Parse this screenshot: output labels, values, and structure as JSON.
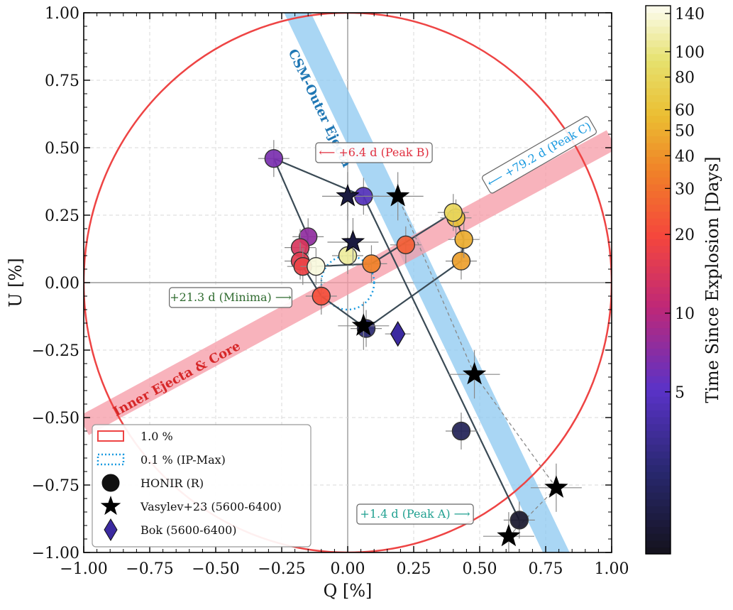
{
  "chart_data": {
    "type": "scatter",
    "xlabel": "Q [%]",
    "ylabel": "U [%]",
    "xlim": [
      -1.0,
      1.0
    ],
    "ylim": [
      -1.0,
      1.0
    ],
    "grid": true,
    "x_ticks": [
      "−1.00",
      "−0.75",
      "−0.50",
      "−0.25",
      "0.00",
      "0.25",
      "0.50",
      "0.75",
      "1.00"
    ],
    "y_ticks": [
      "1.00",
      "0.75",
      "0.50",
      "0.25",
      "0.00",
      "−0.25",
      "−0.50",
      "−0.75",
      "−1.00"
    ],
    "x_tick_values": [
      -1.0,
      -0.75,
      -0.5,
      -0.25,
      0.0,
      0.25,
      0.5,
      0.75,
      1.0
    ],
    "y_tick_values": [
      1.0,
      0.75,
      0.5,
      0.25,
      0.0,
      -0.25,
      -0.5,
      -0.75,
      -1.0
    ],
    "circles": [
      {
        "name": "1.0 %",
        "radius": 1.0,
        "color": "#ee4444",
        "style": "solid"
      },
      {
        "name": "0.1 % (IP-Max)",
        "radius": 0.1,
        "color": "#1a9ae0",
        "style": "dotted"
      }
    ],
    "bands": [
      {
        "label": "CSM-Outer Ejecta",
        "color": "#8cc8f0",
        "text_color": "#1f77b4",
        "line": [
          [
            -0.2,
            1.02
          ],
          [
            0.8,
            -1.02
          ]
        ]
      },
      {
        "label": "Inner Ejecta & Core",
        "color": "#f59aa6",
        "text_color": "#d62728",
        "line": [
          [
            -1.0,
            -0.53
          ],
          [
            1.0,
            0.53
          ]
        ]
      }
    ],
    "honir_series": [
      {
        "q": 0.65,
        "u": -0.88,
        "day": 1.4
      },
      {
        "q": 0.43,
        "u": -0.55,
        "day": 2.0
      },
      {
        "q": 0.06,
        "u": 0.32,
        "day": 4.5
      },
      {
        "q": -0.28,
        "u": 0.46,
        "day": 6.4
      },
      {
        "q": -0.15,
        "u": 0.17,
        "day": 7.5
      },
      {
        "q": 0.07,
        "u": -0.17,
        "day": 2.5
      },
      {
        "q": -0.18,
        "u": 0.13,
        "day": 14
      },
      {
        "q": -0.18,
        "u": 0.08,
        "day": 16
      },
      {
        "q": -0.17,
        "u": 0.06,
        "day": 18
      },
      {
        "q": -0.1,
        "u": -0.05,
        "day": 21.3
      },
      {
        "q": 0.22,
        "u": 0.14,
        "day": 25
      },
      {
        "q": 0.09,
        "u": 0.07,
        "day": 35
      },
      {
        "q": 0.43,
        "u": 0.08,
        "day": 45
      },
      {
        "q": 0.44,
        "u": 0.16,
        "day": 50
      },
      {
        "q": 0.41,
        "u": 0.24,
        "day": 60
      },
      {
        "q": 0.4,
        "u": 0.26,
        "day": 79.2
      },
      {
        "q": 0.0,
        "u": 0.1,
        "day": 110
      },
      {
        "q": -0.12,
        "u": 0.06,
        "day": 140
      }
    ],
    "honir_path": [
      [
        0.65,
        -0.88
      ],
      [
        0.06,
        0.32
      ],
      [
        -0.28,
        0.46
      ],
      [
        -0.15,
        0.17
      ],
      [
        -0.17,
        0.06
      ],
      [
        -0.1,
        -0.05
      ],
      [
        0.07,
        -0.17
      ],
      [
        0.43,
        0.08
      ],
      [
        0.44,
        0.16
      ],
      [
        0.4,
        0.26
      ],
      [
        0.09,
        0.07
      ],
      [
        -0.12,
        0.06
      ]
    ],
    "vasylev23": [
      {
        "q": 0.61,
        "u": -0.94
      },
      {
        "q": 0.79,
        "u": -0.76
      },
      {
        "q": 0.48,
        "u": -0.34
      },
      {
        "q": 0.19,
        "u": 0.32
      },
      {
        "q": 0.0,
        "u": 0.32
      },
      {
        "q": 0.02,
        "u": 0.15
      },
      {
        "q": 0.06,
        "u": -0.16
      }
    ],
    "bok": [
      {
        "q": 0.19,
        "u": -0.19
      }
    ],
    "annotations": [
      {
        "text": "⟵ +6.4 d (Peak B)",
        "color": "#e03040"
      },
      {
        "text": "⟵ +79.2 d (Peak C)",
        "color": "#1a9ae0"
      },
      {
        "text": "+21.3 d (Minima) ⟶",
        "color": "#2f6b2f"
      },
      {
        "text": "+1.4 d (Peak A) ⟶",
        "color": "#20a090"
      }
    ],
    "legend": [
      {
        "label": "1.0 %",
        "marker": "rect-red"
      },
      {
        "label": "0.1 % (IP-Max)",
        "marker": "rect-dotted-blue"
      },
      {
        "label": "HONIR (R)",
        "marker": "circle"
      },
      {
        "label": "Vasylev+23 (5600-6400)",
        "marker": "star"
      },
      {
        "label": "Bok (5600-6400)",
        "marker": "diamond"
      }
    ],
    "colorbar": {
      "label": "Time Since Explosion [Days]",
      "scale": "log",
      "range": [
        1.2,
        150
      ],
      "ticks": [
        "140",
        "100",
        "80",
        "60",
        "50",
        "40",
        "30",
        "20",
        "10",
        "5"
      ],
      "tick_values": [
        140,
        100,
        80,
        60,
        50,
        40,
        30,
        20,
        10,
        5
      ]
    }
  }
}
